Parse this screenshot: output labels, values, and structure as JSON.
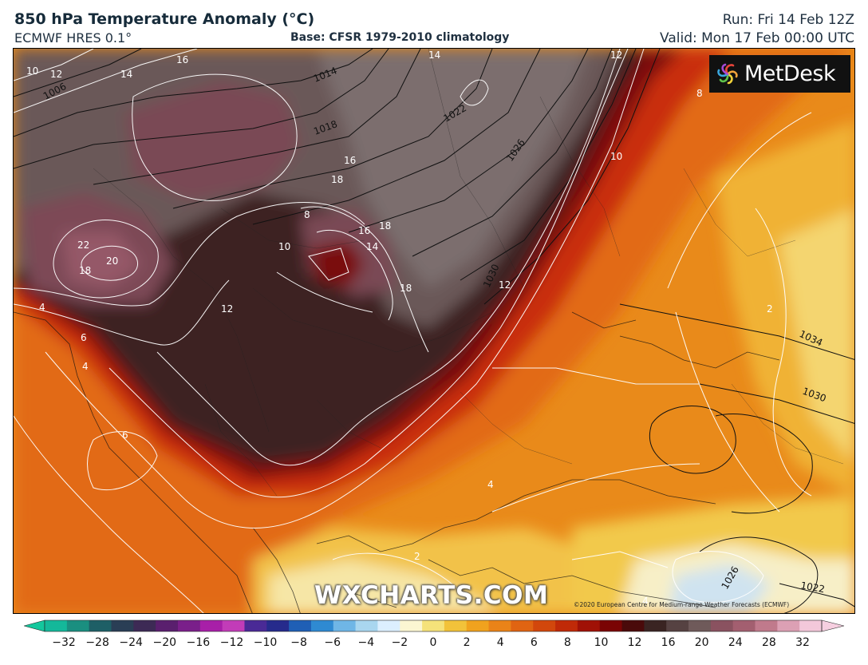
{
  "header": {
    "title": "850 hPa Temperature Anomaly (°C)",
    "model": "ECMWF HRES 0.1°",
    "base": "Base: CFSR 1979-2010 climatology",
    "run": "Run: Fri 14 Feb 12Z",
    "valid": "Valid: Mon 17 Feb 00:00 UTC"
  },
  "logo": {
    "text": "MetDesk",
    "icon": "metdesk-spiral-icon"
  },
  "watermark": "WXCHARTS.COM",
  "copyright": "©2020 European Centre for Medium-range Weather Forecasts (ECMWF)",
  "colorbar": {
    "labels": [
      "−32",
      "−28",
      "−24",
      "−20",
      "−16",
      "−12",
      "−10",
      "−8",
      "−6",
      "−4",
      "−2",
      "0",
      "2",
      "4",
      "6",
      "8",
      "10",
      "12",
      "16",
      "20",
      "24",
      "28",
      "32"
    ],
    "colors": [
      "#14b89a",
      "#1a8f80",
      "#1e5f66",
      "#2a3e55",
      "#3d2a55",
      "#5a1f6e",
      "#7a1f8a",
      "#a81fa8",
      "#c23cb8",
      "#4a2a96",
      "#262b8c",
      "#1f5fb5",
      "#2f8ad2",
      "#6fb6e6",
      "#a9d6ef",
      "#dcefff",
      "#fbf6d2",
      "#f5e27a",
      "#f2c23a",
      "#f0a21e",
      "#ea8318",
      "#e06412",
      "#d2470c",
      "#c02a08",
      "#a01106",
      "#7a0404",
      "#4a0a0a",
      "#3a2422",
      "#564242",
      "#6f5a5a",
      "#8a5260",
      "#a35f70",
      "#c07a8c",
      "#dca0b4",
      "#f3c8da"
    ],
    "left_color": "#14c79d",
    "right_color": "#f6cfe0"
  },
  "map": {
    "anomaly_colors": {
      "warm_outer": "#e98a1a",
      "warm_mid": "#e0611a",
      "warm_red": "#c82a0c",
      "dark_red": "#7a0808",
      "very_dark": "#3c2020",
      "dark_grey": "#5a4646",
      "grey": "#7a6a6a",
      "mauve": "#7a4a55",
      "mauve_light": "#8e5666",
      "yellow": "#f2c94c",
      "pale": "#f7efc7",
      "blue_pale": "#cfe3f0",
      "blue": "#3d86c6"
    },
    "isobar_labels": [
      "1006",
      "1014",
      "1018",
      "1022",
      "1026",
      "1030",
      "1034",
      "1030",
      "1026",
      "1022"
    ],
    "anomaly_labels": [
      "10",
      "12",
      "14",
      "16",
      "14",
      "12",
      "8",
      "10",
      "16",
      "18",
      "8",
      "16",
      "18",
      "14",
      "10",
      "22",
      "20",
      "18",
      "12",
      "18",
      "12",
      "4",
      "6",
      "4",
      "6",
      "4",
      "2",
      "4",
      "2"
    ]
  }
}
